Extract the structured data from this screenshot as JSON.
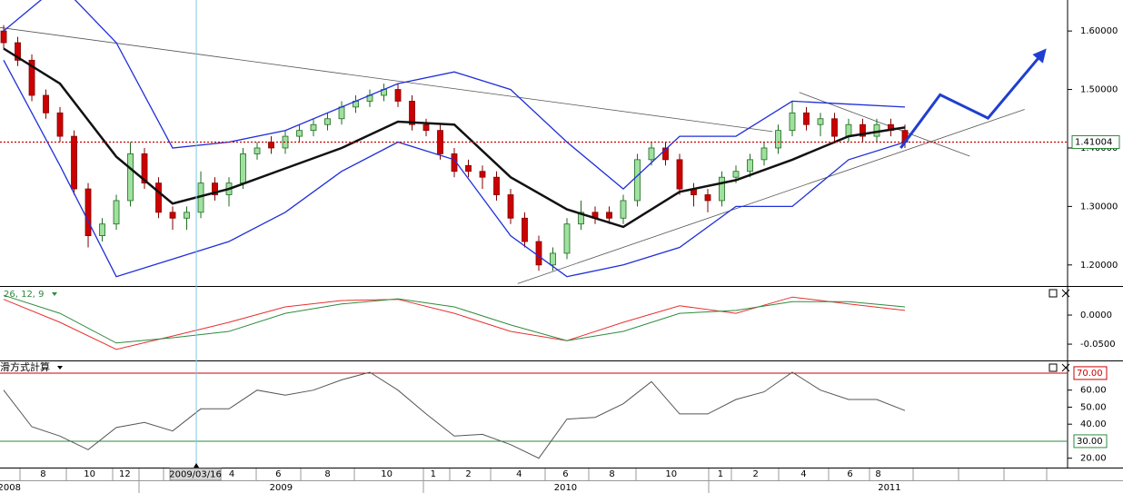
{
  "chart_data": [
    {
      "type": "candlestick",
      "xlim": [
        -0.26,
        75.55
      ],
      "ylim": [
        1.164,
        1.653
      ],
      "yticks": [
        {
          "value": 1.2,
          "label": "1.20000"
        },
        {
          "value": 1.3,
          "label": "1.30000"
        },
        {
          "value": 1.4,
          "label": "1.40000"
        },
        {
          "value": 1.5,
          "label": "1.50000"
        },
        {
          "value": 1.6,
          "label": "1.60000"
        }
      ],
      "up_color": "#a0e0a0",
      "down_color": "#cc0000",
      "open": [
        1.6,
        1.58,
        1.55,
        1.49,
        1.46,
        1.42,
        1.33,
        1.25,
        1.27,
        1.31,
        1.39,
        1.34,
        1.29,
        1.28,
        1.29,
        1.34,
        1.32,
        1.34,
        1.39,
        1.41,
        1.4,
        1.42,
        1.43,
        1.44,
        1.45,
        1.47,
        1.48,
        1.49,
        1.5,
        1.48,
        1.44,
        1.43,
        1.39,
        1.37,
        1.36,
        1.35,
        1.32,
        1.28,
        1.24,
        1.2,
        1.22,
        1.27,
        1.29,
        1.29,
        1.28,
        1.31,
        1.38,
        1.4,
        1.38,
        1.33,
        1.32,
        1.31,
        1.35,
        1.36,
        1.38,
        1.4,
        1.43,
        1.46,
        1.44,
        1.45,
        1.42,
        1.44,
        1.42,
        1.44,
        1.43
      ],
      "high": [
        1.61,
        1.59,
        1.56,
        1.5,
        1.47,
        1.43,
        1.34,
        1.28,
        1.32,
        1.41,
        1.4,
        1.35,
        1.3,
        1.3,
        1.36,
        1.35,
        1.35,
        1.4,
        1.41,
        1.42,
        1.43,
        1.44,
        1.45,
        1.46,
        1.48,
        1.49,
        1.5,
        1.51,
        1.51,
        1.49,
        1.45,
        1.44,
        1.4,
        1.38,
        1.37,
        1.36,
        1.33,
        1.29,
        1.25,
        1.23,
        1.28,
        1.31,
        1.3,
        1.3,
        1.32,
        1.39,
        1.41,
        1.41,
        1.39,
        1.34,
        1.33,
        1.36,
        1.37,
        1.39,
        1.41,
        1.44,
        1.48,
        1.47,
        1.46,
        1.46,
        1.45,
        1.45,
        1.45,
        1.45,
        1.44
      ],
      "low": [
        1.57,
        1.54,
        1.48,
        1.45,
        1.41,
        1.32,
        1.23,
        1.24,
        1.26,
        1.3,
        1.33,
        1.28,
        1.26,
        1.26,
        1.28,
        1.31,
        1.3,
        1.33,
        1.38,
        1.39,
        1.39,
        1.41,
        1.42,
        1.43,
        1.44,
        1.46,
        1.47,
        1.48,
        1.47,
        1.43,
        1.42,
        1.38,
        1.35,
        1.35,
        1.33,
        1.31,
        1.27,
        1.23,
        1.19,
        1.19,
        1.21,
        1.26,
        1.27,
        1.27,
        1.27,
        1.3,
        1.37,
        1.37,
        1.32,
        1.3,
        1.29,
        1.3,
        1.34,
        1.35,
        1.37,
        1.39,
        1.42,
        1.43,
        1.42,
        1.41,
        1.41,
        1.41,
        1.41,
        1.42,
        1.4
      ],
      "close": [
        1.58,
        1.55,
        1.49,
        1.46,
        1.42,
        1.33,
        1.25,
        1.27,
        1.31,
        1.39,
        1.34,
        1.29,
        1.28,
        1.29,
        1.34,
        1.32,
        1.34,
        1.39,
        1.4,
        1.4,
        1.42,
        1.43,
        1.44,
        1.45,
        1.47,
        1.48,
        1.49,
        1.5,
        1.48,
        1.44,
        1.43,
        1.39,
        1.36,
        1.36,
        1.35,
        1.32,
        1.28,
        1.24,
        1.2,
        1.22,
        1.27,
        1.29,
        1.28,
        1.28,
        1.31,
        1.38,
        1.4,
        1.38,
        1.33,
        1.32,
        1.31,
        1.35,
        1.36,
        1.38,
        1.4,
        1.43,
        1.46,
        1.44,
        1.45,
        1.42,
        1.44,
        1.42,
        1.44,
        1.43,
        1.41
      ],
      "series": [
        {
          "color": "#111111",
          "width": 2.5,
          "x": [
            0,
            4,
            8,
            12,
            16,
            20,
            24,
            28,
            32,
            36,
            40,
            44,
            48,
            52,
            56,
            60,
            64
          ],
          "values": [
            1.57,
            1.51,
            1.385,
            1.305,
            1.33,
            1.365,
            1.4,
            1.445,
            1.44,
            1.35,
            1.295,
            1.265,
            1.325,
            1.345,
            1.38,
            1.42,
            1.435
          ]
        },
        {
          "color": "#1f2fd8",
          "width": 1.3,
          "x": [
            0,
            4,
            8,
            12,
            16,
            20,
            24,
            28,
            32,
            36,
            40,
            44,
            48,
            52,
            56,
            60,
            64
          ],
          "values": [
            1.6,
            1.68,
            1.58,
            1.4,
            1.41,
            1.43,
            1.47,
            1.51,
            1.53,
            1.5,
            1.41,
            1.33,
            1.42,
            1.42,
            1.48,
            1.475,
            1.47
          ]
        },
        {
          "color": "#1f2fd8",
          "width": 1.3,
          "x": [
            0,
            4,
            8,
            12,
            16,
            20,
            24,
            28,
            32,
            36,
            40,
            44,
            48,
            52,
            56,
            60,
            64
          ],
          "values": [
            1.55,
            1.37,
            1.18,
            1.21,
            1.24,
            1.29,
            1.36,
            1.41,
            1.38,
            1.25,
            1.18,
            1.2,
            1.23,
            1.3,
            1.3,
            1.38,
            1.41
          ]
        }
      ],
      "trendlines": [
        {
          "color": "#555555",
          "x": [
            -0.26,
            54.6
          ],
          "values": [
            1.606,
            1.428
          ]
        },
        {
          "color": "#555555",
          "x": [
            36.5,
            72.5
          ],
          "values": [
            1.168,
            1.466
          ]
        },
        {
          "color": "#555555",
          "x": [
            56.5,
            68.6
          ],
          "values": [
            1.495,
            1.386
          ]
        }
      ],
      "projection": {
        "color": "#1f3fd0",
        "x": [
          63.7,
          66.5,
          69.9,
          73.8
        ],
        "values": [
          1.4,
          1.491,
          1.451,
          1.563
        ]
      },
      "current": 1.41004,
      "current_color": "#cc0000"
    },
    {
      "type": "line",
      "title": "26, 12, 9",
      "xlim": [
        -0.26,
        75.55
      ],
      "ylim": [
        -0.078,
        0.0484
      ],
      "yticks": [
        {
          "value": 0,
          "label": "0.0000"
        },
        {
          "value": -0.05,
          "label": "-0.0500"
        }
      ],
      "series": [
        {
          "color": "#e83030",
          "x": [
            0,
            4,
            8,
            12,
            16,
            20,
            24,
            28,
            32,
            36,
            40,
            44,
            48,
            52,
            56,
            60,
            64
          ],
          "values": [
            0.027,
            -0.0125,
            -0.059,
            -0.036,
            -0.0125,
            0.014,
            0.025,
            0.027,
            0.003,
            -0.028,
            -0.044,
            -0.0125,
            0.016,
            0.003,
            0.031,
            0.019,
            0.008
          ]
        },
        {
          "color": "#2e8b3e",
          "x": [
            0,
            4,
            8,
            12,
            16,
            20,
            24,
            28,
            32,
            36,
            40,
            44,
            48,
            52,
            56,
            60,
            64
          ],
          "values": [
            0.034,
            0.003,
            -0.048,
            -0.039,
            -0.028,
            0.003,
            0.019,
            0.028,
            0.014,
            -0.017,
            -0.044,
            -0.028,
            0.003,
            0.008,
            0.023,
            0.023,
            0.014
          ]
        }
      ]
    },
    {
      "type": "line",
      "title": "滑方式計算",
      "xlim": [
        -0.26,
        75.55
      ],
      "ylim": [
        14.5,
        76.9
      ],
      "yticks": [
        {
          "value": 20,
          "label": "20.00"
        },
        {
          "value": 40,
          "label": "40.00"
        },
        {
          "value": 50,
          "label": "50.00"
        },
        {
          "value": 60,
          "label": "60.00"
        }
      ],
      "levels": [
        {
          "value": 70,
          "label": "70.00",
          "color": "#cc0000"
        },
        {
          "value": 30,
          "label": "30.00",
          "color": "#2e8b3e"
        }
      ],
      "series": [
        {
          "color": "#555555",
          "x": [
            0,
            2,
            4,
            6,
            8,
            10,
            12,
            14,
            16,
            18,
            20,
            22,
            24,
            26,
            28,
            30,
            32,
            34,
            36,
            38,
            40,
            42,
            44,
            46,
            48,
            50,
            52,
            54,
            56,
            58,
            60,
            62,
            64
          ],
          "values": [
            60,
            38.5,
            33,
            25,
            38,
            41,
            36,
            49,
            49,
            60,
            57,
            60,
            66,
            70.5,
            60,
            46,
            33,
            34,
            28,
            20,
            43,
            44,
            52,
            65,
            46,
            46,
            54.5,
            59,
            70.5,
            60,
            54.5,
            54.5,
            48
          ]
        }
      ],
      "xticks": [
        {
          "value": 2.8,
          "label": "8"
        },
        {
          "value": 6.1,
          "label": "10"
        },
        {
          "value": 8.6,
          "label": "12"
        },
        {
          "value": 16.2,
          "label": "4"
        },
        {
          "value": 19.5,
          "label": "6"
        },
        {
          "value": 23.0,
          "label": "8"
        },
        {
          "value": 27.2,
          "label": "10"
        },
        {
          "value": 30.5,
          "label": "1"
        },
        {
          "value": 33.0,
          "label": "2"
        },
        {
          "value": 36.6,
          "label": "4"
        },
        {
          "value": 39.9,
          "label": "6"
        },
        {
          "value": 43.2,
          "label": "8"
        },
        {
          "value": 47.4,
          "label": "10"
        },
        {
          "value": 50.9,
          "label": "1"
        },
        {
          "value": 53.4,
          "label": "2"
        },
        {
          "value": 56.8,
          "label": "4"
        },
        {
          "value": 60.1,
          "label": "6"
        },
        {
          "value": 62.1,
          "label": "8"
        }
      ],
      "year_ticks": [
        {
          "value": 0.4,
          "label": "2008"
        },
        {
          "value": 19.7,
          "label": "2009"
        },
        {
          "value": 39.9,
          "label": "2010"
        },
        {
          "value": 62.9,
          "label": "2011"
        }
      ],
      "cursor": {
        "value": 13.68,
        "label": "2009/03/16"
      }
    }
  ]
}
